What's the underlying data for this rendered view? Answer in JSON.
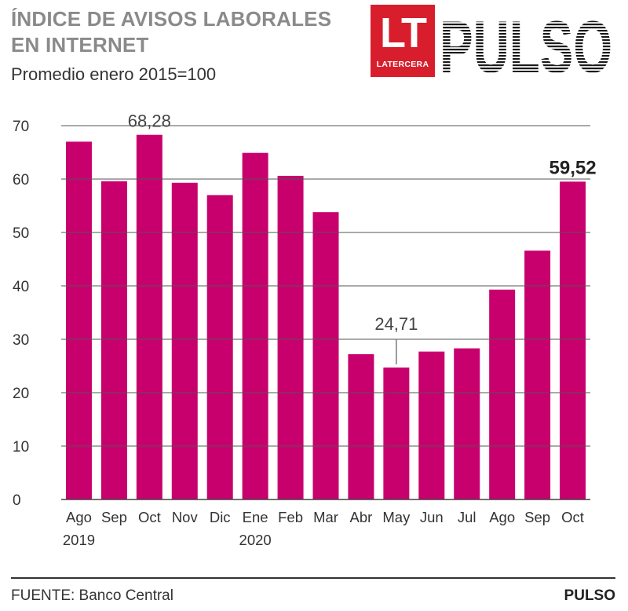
{
  "header": {
    "title_line1": "ÍNDICE DE AVISOS LABORALES",
    "title_line2": "EN INTERNET",
    "subtitle": "Promedio enero 2015=100"
  },
  "logo": {
    "lt": "LT",
    "lt_sub": "LATERCERA",
    "pulso": "PULSO",
    "lt_color": "#d81e2c"
  },
  "footer": {
    "source": "FUENTE: Banco Central",
    "brand": "PULSO"
  },
  "chart_data": {
    "type": "bar",
    "title": "ÍNDICE DE AVISOS LABORALES EN INTERNET",
    "subtitle": "Promedio enero 2015=100",
    "bar_color": "#c8006e",
    "categories": [
      "Ago",
      "Sep",
      "Oct",
      "Nov",
      "Dic",
      "Ene",
      "Feb",
      "Mar",
      "Abr",
      "May",
      "Jun",
      "Jul",
      "Ago",
      "Sep",
      "Oct"
    ],
    "year_labels": [
      {
        "index": 0,
        "label": "2019"
      },
      {
        "index": 5,
        "label": "2020"
      }
    ],
    "values": [
      67.0,
      59.6,
      68.28,
      59.3,
      57.0,
      64.9,
      60.6,
      53.8,
      27.2,
      24.71,
      27.7,
      28.3,
      39.3,
      46.6,
      59.52
    ],
    "data_labels": [
      {
        "index": 2,
        "label": "68,28",
        "bold": false
      },
      {
        "index": 9,
        "label": "24,71",
        "bold": false
      },
      {
        "index": 14,
        "label": "59,52",
        "bold": true
      }
    ],
    "yticks": [
      0,
      10,
      20,
      30,
      40,
      50,
      60,
      70
    ],
    "ylim": [
      0,
      70
    ],
    "grid": true,
    "xlabel": "",
    "ylabel": ""
  }
}
